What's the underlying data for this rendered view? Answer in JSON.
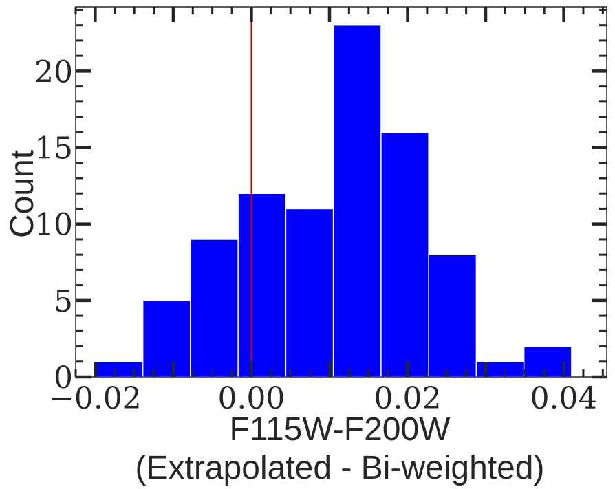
{
  "chart_data": {
    "type": "bar",
    "title": "",
    "xlabel": "F115W-F200W",
    "xlabel_line2": "(Extrapolated - Bi-weighted)",
    "ylabel": "Count",
    "xlim": [
      -0.0225,
      0.0455
    ],
    "ylim": [
      0,
      24.2
    ],
    "grid": false,
    "legend": "none",
    "bar_color": "#0000ff",
    "bar_edge_color": "#ffffff",
    "vline": {
      "x": 0.0,
      "color": "#cc0000"
    },
    "bins": [
      {
        "x0": -0.02,
        "x1": -0.0139,
        "count": 1
      },
      {
        "x0": -0.0139,
        "x1": -0.0078,
        "count": 5
      },
      {
        "x0": -0.0078,
        "x1": -0.0017,
        "count": 9
      },
      {
        "x0": -0.0017,
        "x1": 0.0044,
        "count": 12
      },
      {
        "x0": 0.0044,
        "x1": 0.0105,
        "count": 11
      },
      {
        "x0": 0.0105,
        "x1": 0.0166,
        "count": 23
      },
      {
        "x0": 0.0166,
        "x1": 0.0227,
        "count": 16
      },
      {
        "x0": 0.0227,
        "x1": 0.0288,
        "count": 8
      },
      {
        "x0": 0.0288,
        "x1": 0.0349,
        "count": 1
      },
      {
        "x0": 0.0349,
        "x1": 0.041,
        "count": 2
      }
    ],
    "x_ticks": [
      {
        "value": -0.02,
        "label": "−0.02"
      },
      {
        "value": 0.0,
        "label": "0.00"
      },
      {
        "value": 0.02,
        "label": "0.02"
      },
      {
        "value": 0.04,
        "label": "0.04"
      }
    ],
    "y_ticks": [
      {
        "value": 0,
        "label": "0"
      },
      {
        "value": 5,
        "label": "5"
      },
      {
        "value": 10,
        "label": "10"
      },
      {
        "value": 15,
        "label": "15"
      },
      {
        "value": 20,
        "label": "20"
      }
    ]
  }
}
